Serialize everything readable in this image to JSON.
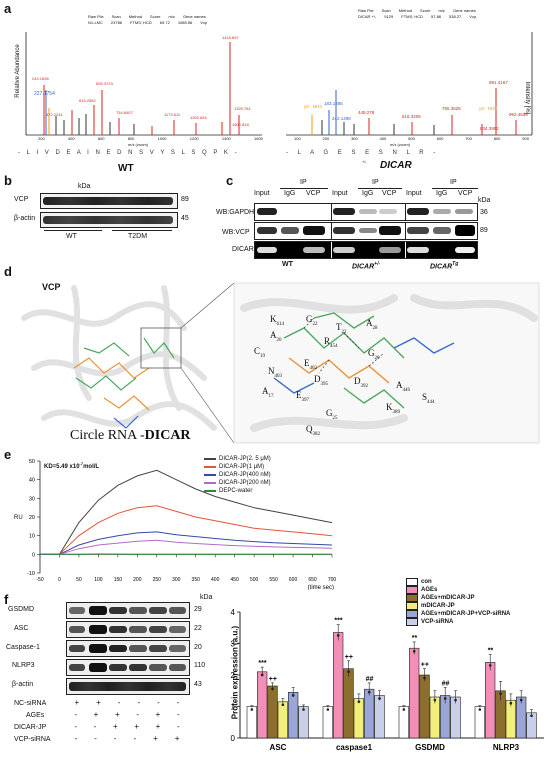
{
  "panels": {
    "a": "a",
    "b": "b",
    "c": "c",
    "d": "d",
    "e": "e",
    "f": "f"
  },
  "panel_a": {
    "left": {
      "header_labels": [
        "Raw File",
        "Scan",
        "Method",
        "Score",
        "m/z",
        "Gene names"
      ],
      "header_values": [
        "N1-LMC",
        "23786",
        "FTMS; HCD",
        "69.72",
        "1085.56",
        "Vcp"
      ],
      "ylabel": "Relative Abundance",
      "xlabel": "m/z (zoom)",
      "xticks": [
        "200",
        "400",
        "600",
        "800",
        "1000",
        "1200",
        "1400",
        "1600"
      ],
      "peaks_red": [
        "244.1656",
        "659.3723",
        "1416.697",
        "372.2241",
        "616.2582",
        "754.6407",
        "1173.611",
        "1302.654",
        "1329.781",
        "1600.818"
      ],
      "peaks_blue": [
        "227.1754"
      ],
      "peaks_orange": [
        "b2"
      ],
      "sequence": "- L I V D E A I N E D N S V Y S L S Q P K -",
      "title": "WT"
    },
    "right": {
      "header_labels": [
        "Raw File",
        "Scan",
        "Method",
        "Score",
        "m/z",
        "Gene names"
      ],
      "header_values": [
        "DICAR +/-",
        "5129",
        "FTMS; HCD",
        "57.86",
        "538.27",
        "Vcp"
      ],
      "ylabel": "Intensity [%]",
      "xlabel": "m/z (zoom)",
      "xticks": [
        "100",
        "200",
        "300",
        "400",
        "500",
        "600",
        "700",
        "800",
        "900"
      ],
      "peaks_red": [
        "449.278",
        "616.3206",
        "755.3526",
        "891.4167",
        "834.3952",
        "962.4538"
      ],
      "peaks_blue": [
        "183.1285",
        "242.1498"
      ],
      "peaks_orange": [
        "y8 - NH3",
        "y3 - NH3"
      ],
      "sequence": "- L A G E S E S N L R -",
      "title": "DICAR",
      "title_sup": "+/-"
    }
  },
  "panel_b": {
    "rows": [
      "VCP",
      "β-actin"
    ],
    "kda_header": "kDa",
    "kda": [
      "89",
      "45"
    ],
    "groups": [
      "WT",
      "T2DM"
    ]
  },
  "panel_c": {
    "ip_header": "IP",
    "lane_labels": [
      "Input",
      "IgG",
      "VCP"
    ],
    "rows": [
      "WB:GAPDH",
      "WB:VCP",
      "DICAR"
    ],
    "kda_header": "kDa",
    "kda": [
      "36",
      "89"
    ],
    "groups": [
      "WT",
      "DICAR",
      "DICAR"
    ],
    "group_sups": [
      "",
      "+/-",
      "Tg"
    ]
  },
  "panel_d": {
    "protein_label": "VCP",
    "caption": "Circle RNA -DICAR",
    "caption_bold": "DICAR",
    "residues": [
      {
        "t": "K",
        "s": "614"
      },
      {
        "t": "G",
        "s": "22"
      },
      {
        "t": "T",
        "s": "22"
      },
      {
        "t": "A",
        "s": "20"
      },
      {
        "t": "R",
        "s": "454"
      },
      {
        "t": "C",
        "s": "19"
      },
      {
        "t": "G",
        "s": "20"
      },
      {
        "t": "E",
        "s": "402"
      },
      {
        "t": "N",
        "s": "403"
      },
      {
        "t": "D",
        "s": "395"
      },
      {
        "t": "D",
        "s": "392"
      },
      {
        "t": "A",
        "s": "446"
      },
      {
        "t": "A",
        "s": "17"
      },
      {
        "t": "E",
        "s": "397"
      },
      {
        "t": "S",
        "s": "444"
      },
      {
        "t": "K",
        "s": "389"
      },
      {
        "t": "G",
        "s": "25"
      },
      {
        "t": "Q",
        "s": "382"
      },
      {
        "t": "A",
        "s": "28"
      }
    ]
  },
  "panel_e": {
    "kd_text": "KD=5.49 x10",
    "kd_exp": "-7",
    "kd_unit": "mol/L",
    "legend": [
      {
        "name": "DICAR-JP(2. 5 μM)",
        "color": "#444444"
      },
      {
        "name": "DICAR-JP(1 μM)",
        "color": "#e2563a"
      },
      {
        "name": "DICAR-JP(400 nM)",
        "color": "#3549a8"
      },
      {
        "name": "DICAR-JP(200 nM)",
        "color": "#b46bc8"
      },
      {
        "name": "DEPC-water",
        "color": "#2a8a3a"
      }
    ],
    "ylabel": "RU",
    "xlabel": "(time sec)"
  },
  "panel_f": {
    "blot_rows": [
      "GSDMD",
      "ASC",
      "Caspase-1",
      "NLRP3",
      "β-actin"
    ],
    "kda_header": "kDa",
    "kda": [
      "29",
      "22",
      "20",
      "110",
      "43"
    ],
    "treat_labels": [
      "NC-siRNA",
      "AGEs",
      "DICAR-JP",
      "VCP-siRNA"
    ],
    "treat_signs": [
      [
        "+",
        "+",
        "-",
        "-",
        "-",
        "-"
      ],
      [
        "-",
        "+",
        "+",
        "-",
        "+",
        "-"
      ],
      [
        "-",
        "-",
        "+",
        "+",
        "+",
        "-"
      ],
      [
        "-",
        "-",
        "-",
        "-",
        "+",
        "+"
      ]
    ]
  },
  "chart_data": [
    {
      "type": "line",
      "title": "",
      "xlabel": "(time sec)",
      "ylabel": "RU",
      "x": [
        -50,
        0,
        50,
        100,
        150,
        200,
        250,
        300,
        350,
        400,
        450,
        500,
        550,
        600,
        650,
        700
      ],
      "xticks": [
        "-50",
        "0",
        "50",
        "100",
        "150",
        "200",
        "250",
        "300",
        "350",
        "400",
        "450",
        "500",
        "550",
        "600",
        "650",
        "700"
      ],
      "yticks": [
        "-10",
        "0",
        "10",
        "20",
        "30",
        "40",
        "50"
      ],
      "xlim": [
        -50,
        700
      ],
      "ylim": [
        -10,
        50
      ],
      "series": [
        {
          "name": "DICAR-JP(2. 5 μM)",
          "color": "#444444",
          "values": [
            0,
            0,
            17,
            29,
            37,
            42,
            45,
            40,
            35,
            31,
            28,
            25,
            23,
            21,
            19,
            17
          ]
        },
        {
          "name": "DICAR-JP(1 μM)",
          "color": "#e2563a",
          "values": [
            0,
            0,
            10,
            17,
            22,
            25,
            26,
            23,
            20,
            18,
            16,
            14,
            13,
            12,
            11,
            10
          ]
        },
        {
          "name": "DICAR-JP(400 nM)",
          "color": "#3549a8",
          "values": [
            0,
            0,
            5,
            8,
            10,
            11.5,
            12,
            10.5,
            9.5,
            8.5,
            7.5,
            6.8,
            6.2,
            5.8,
            5.4,
            5
          ]
        },
        {
          "name": "DICAR-JP(200 nM)",
          "color": "#b46bc8",
          "values": [
            0,
            0,
            3,
            5,
            6,
            7,
            7.5,
            6.5,
            5.8,
            5.2,
            4.7,
            4.3,
            4,
            3.7,
            3.5,
            3.3
          ]
        },
        {
          "name": "DEPC-water",
          "color": "#2a8a3a",
          "values": [
            0,
            0,
            0,
            0.2,
            0.1,
            0,
            0,
            0,
            0,
            0,
            0,
            0,
            0,
            0,
            0,
            0
          ]
        }
      ]
    },
    {
      "type": "bar",
      "title": "",
      "xlabel": "",
      "ylabel": "Protein expression (a.u.)",
      "categories": [
        "ASC",
        "caspase1",
        "GSDMD",
        "NLRP3"
      ],
      "yticks": [
        "0",
        "1",
        "2",
        "3",
        "4"
      ],
      "ylim": [
        0,
        4
      ],
      "legend_position": "top-right",
      "series": [
        {
          "name": "con",
          "color": "#ffffff",
          "values": [
            1.0,
            1.0,
            1.0,
            1.0
          ],
          "errors": [
            0.03,
            0.03,
            0.03,
            0.03
          ]
        },
        {
          "name": "AGEs",
          "color": "#f28fb8",
          "values": [
            2.1,
            3.35,
            2.85,
            2.4
          ],
          "errors": [
            0.15,
            0.25,
            0.2,
            0.25
          ]
        },
        {
          "name": "AGEs+mDICAR-JP",
          "color": "#8a6f2e",
          "values": [
            1.65,
            2.2,
            2.0,
            1.5
          ],
          "errors": [
            0.1,
            0.25,
            0.2,
            0.3
          ]
        },
        {
          "name": "mDICAR-JP",
          "color": "#f2ee7a",
          "values": [
            1.15,
            1.25,
            1.3,
            1.2
          ],
          "errors": [
            0.1,
            0.15,
            0.2,
            0.2
          ]
        },
        {
          "name": "AGEs+mDICAR-JP+VCP-siRNA",
          "color": "#9aa6d6",
          "values": [
            1.45,
            1.55,
            1.35,
            1.3
          ],
          "errors": [
            0.15,
            0.2,
            0.25,
            0.2
          ]
        },
        {
          "name": "VCP-siRNA",
          "color": "#c9cfe8",
          "values": [
            1.0,
            1.35,
            1.3,
            0.8
          ],
          "errors": [
            0.05,
            0.15,
            0.2,
            0.1
          ]
        }
      ],
      "annotations": [
        {
          "category": "ASC",
          "series": "AGEs",
          "text": "***"
        },
        {
          "category": "ASC",
          "series": "AGEs+mDICAR-JP",
          "text": "++"
        },
        {
          "category": "caspase1",
          "series": "AGEs",
          "text": "***"
        },
        {
          "category": "caspase1",
          "series": "AGEs+mDICAR-JP",
          "text": "++"
        },
        {
          "category": "caspase1",
          "series": "AGEs+mDICAR-JP+VCP-siRNA",
          "text": "##"
        },
        {
          "category": "GSDMD",
          "series": "AGEs",
          "text": "**"
        },
        {
          "category": "GSDMD",
          "series": "AGEs+mDICAR-JP",
          "text": "++"
        },
        {
          "category": "GSDMD",
          "series": "AGEs+mDICAR-JP+VCP-siRNA",
          "text": "##"
        },
        {
          "category": "NLRP3",
          "series": "AGEs",
          "text": "**"
        }
      ]
    }
  ]
}
